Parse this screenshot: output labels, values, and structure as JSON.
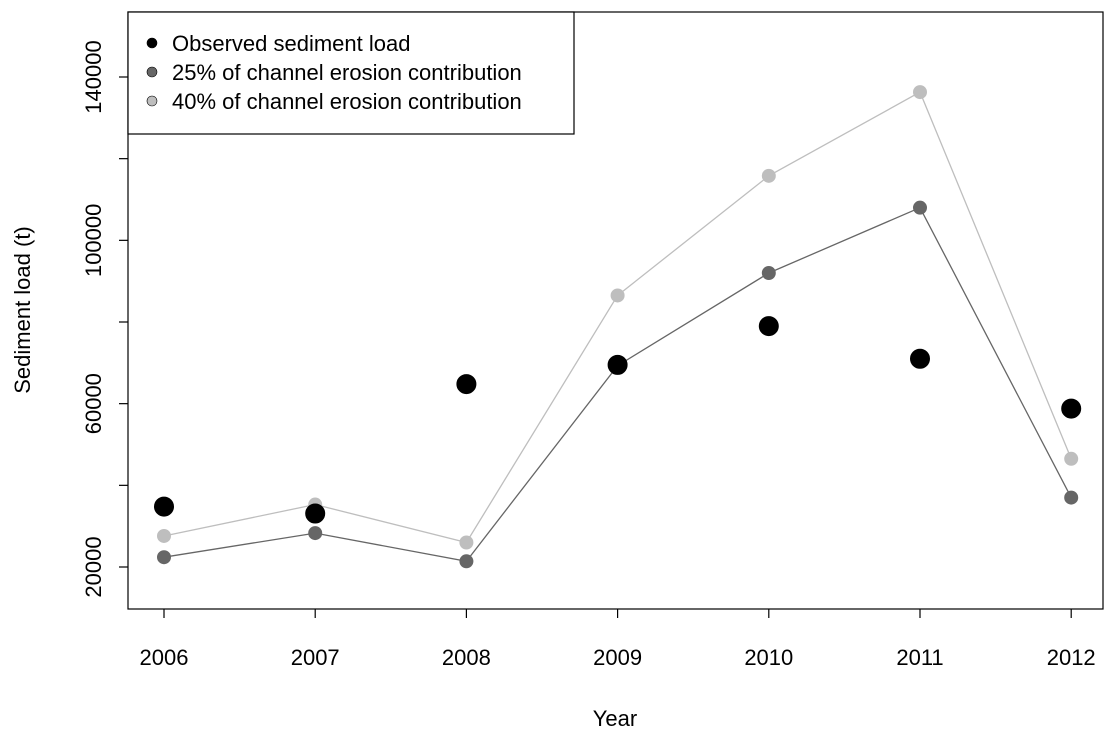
{
  "chart_data": {
    "type": "line",
    "title": "",
    "xlabel": "Year",
    "ylabel": "Sediment load (t)",
    "categories": [
      "2006",
      "2007",
      "2008",
      "2009",
      "2010",
      "2011",
      "2012"
    ],
    "x_ticks": [
      "2006",
      "2007",
      "2008",
      "2009",
      "2010",
      "2011",
      "2012"
    ],
    "y_ticks": [
      "20000",
      "60000",
      "100000",
      "140000"
    ],
    "ylim": [
      10000,
      153000
    ],
    "grid": false,
    "legend_position": "top-left",
    "series": [
      {
        "name": "Observed sediment load",
        "kind": "points",
        "color": "#000000",
        "values": [
          34800,
          33100,
          64800,
          69500,
          79000,
          71000,
          58800
        ]
      },
      {
        "name": "25% of channel erosion contribution",
        "kind": "line+points",
        "color": "#666666",
        "values": [
          22400,
          28300,
          21400,
          69300,
          92000,
          108000,
          37000
        ]
      },
      {
        "name": "40% of channel erosion contribution",
        "kind": "line+points",
        "color": "#bebebe",
        "values": [
          27600,
          35300,
          26000,
          86500,
          115800,
          136300,
          46500
        ]
      }
    ]
  }
}
